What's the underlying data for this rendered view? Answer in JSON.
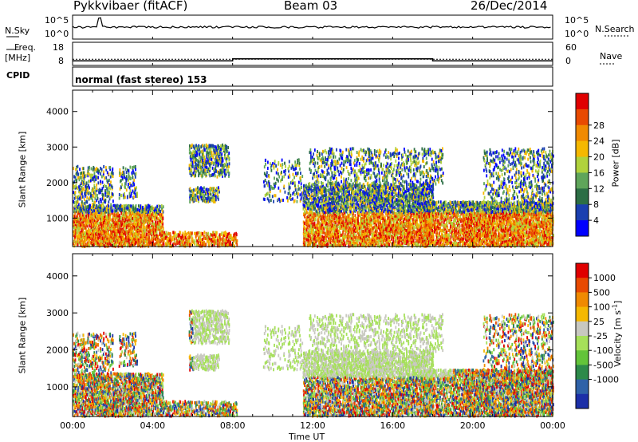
{
  "header": {
    "radar": "Pykkvibaer (fitACF)",
    "beam": "Beam 03",
    "date": "26/Dec/2014"
  },
  "noise_panel": {
    "left_label": "N.Sky",
    "right_label": "N.Search",
    "left_ticks": [
      "10^5",
      "10^0"
    ],
    "right_ticks": [
      "10^5",
      "10^0"
    ]
  },
  "freq_panel": {
    "left_label_1": "Freq.",
    "left_label_2": "[MHz]",
    "right_label": "Nave",
    "left_ticks": [
      "18",
      "8"
    ],
    "right_ticks": [
      "60",
      "0"
    ],
    "freq_mhz": 10.8,
    "nave_steps": [
      {
        "from_hour": 0,
        "to_hour": 8,
        "nave": 12
      },
      {
        "from_hour": 8,
        "to_hour": 18,
        "nave": 17
      },
      {
        "from_hour": 18,
        "to_hour": 24,
        "nave": 12
      }
    ]
  },
  "cpid_panel": {
    "label": "CPID",
    "mode": "normal (fast stereo) 153"
  },
  "chart_data": [
    {
      "type": "heatmap",
      "name": "power",
      "ylabel": "Slant Range [km]",
      "yticks": [
        "1000",
        "2000",
        "3000",
        "4000"
      ],
      "ylim": [
        200,
        4600
      ],
      "xlim": [
        0,
        24
      ],
      "colorbar": {
        "label": "Power [dB]",
        "ticks": [
          "4",
          "8",
          "12",
          "16",
          "20",
          "24",
          "28"
        ],
        "colors": [
          "#0000ff",
          "#1a3fb0",
          "#2c6e45",
          "#5fa55a",
          "#b0d23c",
          "#f5b800",
          "#f08a00",
          "#e84a00",
          "#e00000"
        ]
      }
    },
    {
      "type": "heatmap",
      "name": "velocity",
      "ylabel": "Slant Range [km]",
      "xlabel": "Time UT",
      "yticks": [
        "1000",
        "2000",
        "3000",
        "4000"
      ],
      "xticks": [
        "00:00",
        "04:00",
        "08:00",
        "12:00",
        "16:00",
        "20:00",
        "00:00"
      ],
      "ylim": [
        200,
        4600
      ],
      "xlim": [
        0,
        24
      ],
      "colorbar": {
        "label": "Velocity [m s",
        "label_sup": "-1",
        "label_end": "]",
        "ticks": [
          "1000",
          "500",
          "100",
          "25",
          "-25",
          "-100",
          "-500",
          "-1000"
        ],
        "colors": [
          "#1c2fa8",
          "#2f62a8",
          "#2d8a4a",
          "#63c43a",
          "#a6e05a",
          "#c8c8c0",
          "#f5b800",
          "#f08a00",
          "#e84a00",
          "#e00000"
        ]
      }
    }
  ]
}
